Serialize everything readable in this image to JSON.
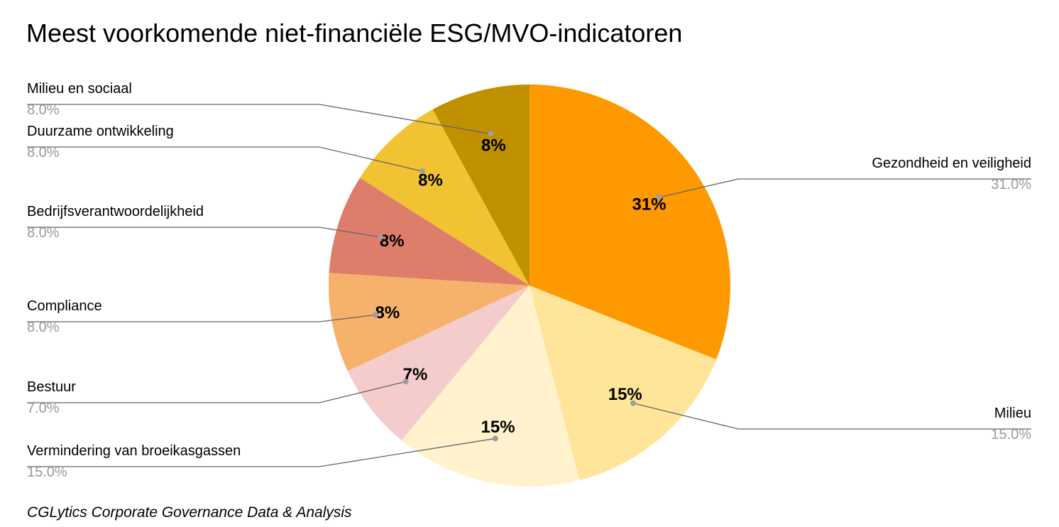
{
  "chart_data": {
    "type": "pie",
    "title": "Meest voorkomende niet-financiële ESG/MVO-indicatoren",
    "footer": "CGLytics Corporate Governance Data & Analysis",
    "legend": "none",
    "slices": [
      {
        "label": "Gezondheid en veiligheid",
        "value": 31.0,
        "value_label": "31.0%",
        "percent_label": "31%",
        "color": "#ff9900"
      },
      {
        "label": "Milieu",
        "value": 15.0,
        "value_label": "15.0%",
        "percent_label": "15%",
        "color": "#ffe599"
      },
      {
        "label": "Vermindering van broeikasgassen",
        "value": 15.0,
        "value_label": "15.0%",
        "percent_label": "15%",
        "color": "#fff2cc"
      },
      {
        "label": "Bestuur",
        "value": 7.0,
        "value_label": "7.0%",
        "percent_label": "7%",
        "color": "#f4cccc"
      },
      {
        "label": "Compliance",
        "value": 8.0,
        "value_label": "8.0%",
        "percent_label": "8%",
        "color": "#f6b26b"
      },
      {
        "label": "Bedrijfsverantwoordelijkheid",
        "value": 8.0,
        "value_label": "8.0%",
        "percent_label": "8%",
        "color": "#dd7e6b"
      },
      {
        "label": "Duurzame ontwikkeling",
        "value": 8.0,
        "value_label": "8.0%",
        "percent_label": "8%",
        "color": "#f1c232"
      },
      {
        "label": "Milieu en sociaal",
        "value": 8.0,
        "value_label": "8.0%",
        "percent_label": "8%",
        "color": "#bf9000"
      }
    ]
  }
}
